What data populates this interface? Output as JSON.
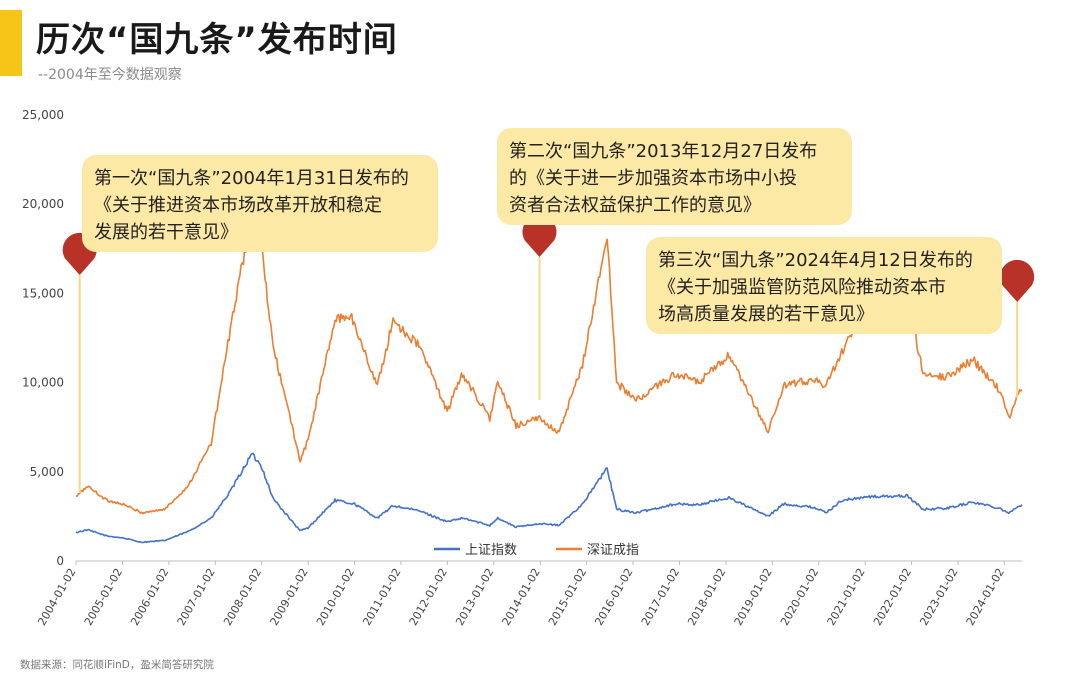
{
  "header": {
    "title": "历次“国九条”发布时间",
    "subtitle": "--2004年至今数据观察",
    "accent_color": "#f5c518"
  },
  "source_note": "数据来源：同花顺iFinD，盈米简答研究院",
  "annotations": [
    {
      "lines": [
        "第一次“国九条”2004年1月31日发布的",
        "《关于推进资本市场改革开放和稳定",
        "发展的若干意见》"
      ]
    },
    {
      "lines": [
        "第二次“国九条”2013年12月27日发布",
        "的《关于进一步加强资本市场中小投",
        "资者合法权益保护工作的意见》"
      ]
    },
    {
      "lines": [
        "第三次“国九条”2024年4月12日发布的",
        "《关于加强监管防范风险推动资本市",
        "场高质量发展的若干意见》"
      ]
    }
  ],
  "markers": [
    {
      "date": "2004-01-31",
      "color": "#b83228"
    },
    {
      "date": "2013-12-27",
      "color": "#b83228"
    },
    {
      "date": "2024-04-12",
      "color": "#b83228"
    }
  ],
  "chart_data": {
    "type": "line",
    "ylim": [
      0,
      25000
    ],
    "yticks": [
      "0",
      "5,000",
      "10,000",
      "15,000",
      "20,000",
      "25,000"
    ],
    "xticks": [
      "2004-01-02",
      "2005-01-02",
      "2006-01-02",
      "2007-01-02",
      "2008-01-02",
      "2009-01-02",
      "2010-01-02",
      "2011-01-02",
      "2012-01-02",
      "2013-01-02",
      "2014-01-02",
      "2015-01-02",
      "2016-01-02",
      "2017-01-02",
      "2018-01-02",
      "2019-01-02",
      "2020-01-02",
      "2021-01-02",
      "2022-01-02",
      "2023-01-02",
      "2024-01-02"
    ],
    "legend_position": "bottom",
    "series": [
      {
        "name": "上证指数",
        "color": "#4472c4",
        "points": [
          [
            "2004-01-02",
            1600
          ],
          [
            "2004-04-01",
            1750
          ],
          [
            "2004-09-01",
            1400
          ],
          [
            "2005-01-01",
            1300
          ],
          [
            "2005-06-01",
            1050
          ],
          [
            "2005-12-01",
            1150
          ],
          [
            "2006-06-01",
            1650
          ],
          [
            "2006-12-01",
            2400
          ],
          [
            "2007-05-01",
            3900
          ],
          [
            "2007-10-16",
            6000
          ],
          [
            "2008-01-01",
            5300
          ],
          [
            "2008-04-01",
            3500
          ],
          [
            "2008-10-28",
            1700
          ],
          [
            "2009-01-01",
            1850
          ],
          [
            "2009-08-01",
            3400
          ],
          [
            "2010-01-01",
            3200
          ],
          [
            "2010-07-01",
            2400
          ],
          [
            "2010-11-01",
            3100
          ],
          [
            "2011-06-01",
            2800
          ],
          [
            "2012-01-01",
            2200
          ],
          [
            "2012-05-01",
            2400
          ],
          [
            "2012-12-01",
            2000
          ],
          [
            "2013-02-01",
            2400
          ],
          [
            "2013-06-25",
            1900
          ],
          [
            "2013-12-27",
            2100
          ],
          [
            "2014-06-01",
            2000
          ],
          [
            "2014-12-01",
            3200
          ],
          [
            "2015-06-12",
            5200
          ],
          [
            "2015-08-26",
            2900
          ],
          [
            "2016-01-27",
            2700
          ],
          [
            "2016-12-01",
            3200
          ],
          [
            "2017-06-01",
            3150
          ],
          [
            "2018-01-26",
            3550
          ],
          [
            "2018-12-01",
            2500
          ],
          [
            "2019-04-01",
            3200
          ],
          [
            "2019-12-01",
            3000
          ],
          [
            "2020-03-01",
            2700
          ],
          [
            "2020-07-01",
            3400
          ],
          [
            "2021-02-01",
            3600
          ],
          [
            "2021-12-01",
            3650
          ],
          [
            "2022-04-01",
            2900
          ],
          [
            "2022-10-01",
            2950
          ],
          [
            "2023-05-01",
            3300
          ],
          [
            "2023-12-01",
            2950
          ],
          [
            "2024-02-05",
            2700
          ],
          [
            "2024-04-12",
            3000
          ],
          [
            "2024-05-20",
            3150
          ]
        ]
      },
      {
        "name": "深证成指",
        "color": "#ed7d31",
        "points": [
          [
            "2004-01-02",
            3600
          ],
          [
            "2004-04-01",
            4200
          ],
          [
            "2004-09-01",
            3400
          ],
          [
            "2005-01-01",
            3200
          ],
          [
            "2005-06-01",
            2700
          ],
          [
            "2005-12-01",
            2900
          ],
          [
            "2006-06-01",
            4200
          ],
          [
            "2006-12-01",
            6600
          ],
          [
            "2007-05-01",
            13000
          ],
          [
            "2007-10-16",
            19500
          ],
          [
            "2008-01-01",
            17500
          ],
          [
            "2008-04-01",
            12000
          ],
          [
            "2008-11-01",
            5600
          ],
          [
            "2009-01-01",
            6800
          ],
          [
            "2009-08-01",
            13500
          ],
          [
            "2009-12-01",
            13800
          ],
          [
            "2010-07-01",
            9800
          ],
          [
            "2010-11-01",
            13500
          ],
          [
            "2011-06-01",
            12000
          ],
          [
            "2012-01-01",
            8400
          ],
          [
            "2012-05-01",
            10500
          ],
          [
            "2012-12-01",
            8000
          ],
          [
            "2013-02-01",
            10000
          ],
          [
            "2013-06-25",
            7600
          ],
          [
            "2013-12-27",
            8000
          ],
          [
            "2014-06-01",
            7200
          ],
          [
            "2014-12-01",
            11000
          ],
          [
            "2015-06-12",
            18200
          ],
          [
            "2015-08-26",
            10000
          ],
          [
            "2016-01-27",
            9000
          ],
          [
            "2016-12-01",
            10500
          ],
          [
            "2017-06-01",
            10000
          ],
          [
            "2018-01-26",
            11500
          ],
          [
            "2018-12-01",
            7250
          ],
          [
            "2019-04-01",
            9800
          ],
          [
            "2019-12-01",
            10200
          ],
          [
            "2020-03-01",
            9800
          ],
          [
            "2020-12-01",
            14000
          ],
          [
            "2021-02-18",
            16200
          ],
          [
            "2021-12-01",
            14800
          ],
          [
            "2022-04-01",
            10600
          ],
          [
            "2022-10-01",
            10300
          ],
          [
            "2023-05-01",
            11300
          ],
          [
            "2023-12-01",
            9500
          ],
          [
            "2024-02-05",
            8000
          ],
          [
            "2024-04-12",
            9300
          ],
          [
            "2024-05-20",
            9600
          ]
        ]
      }
    ]
  }
}
